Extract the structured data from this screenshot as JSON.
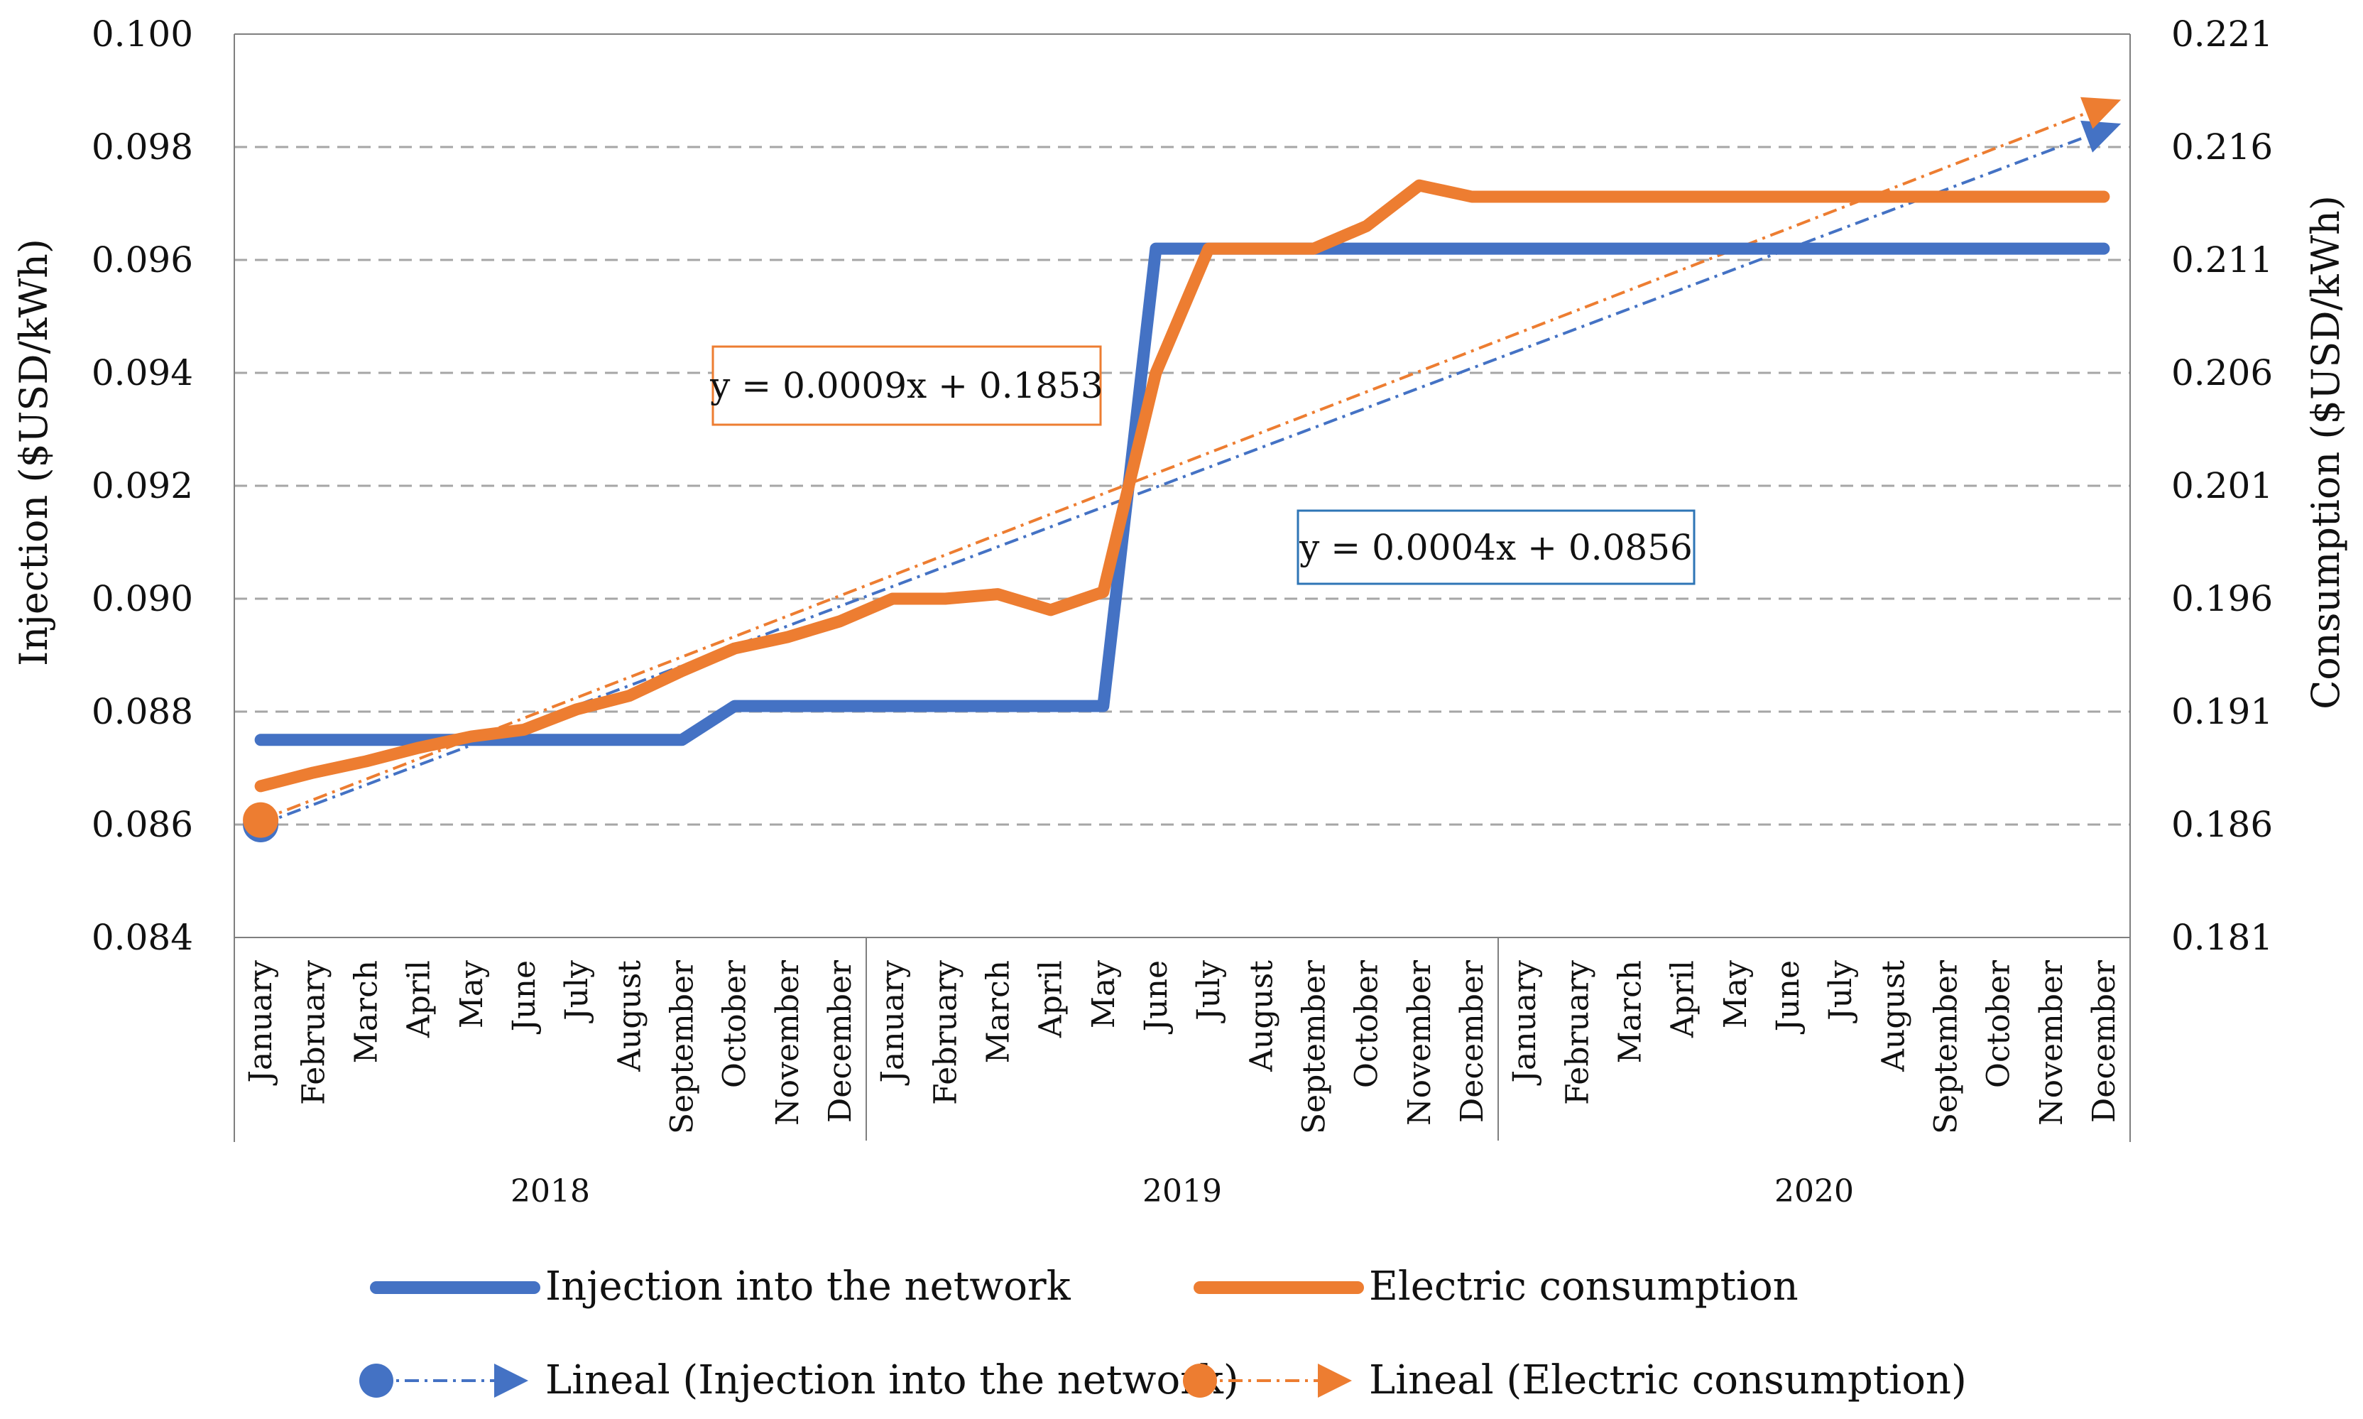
{
  "chart_data": {
    "type": "line",
    "title": "",
    "left_axis": {
      "label": "Injection ($USD/kWh)",
      "ylim": [
        0.084,
        0.1
      ],
      "ticks": [
        "0.084",
        "0.086",
        "0.088",
        "0.090",
        "0.092",
        "0.094",
        "0.096",
        "0.098",
        "0.100"
      ],
      "tick_values": [
        0.084,
        0.086,
        0.088,
        0.09,
        0.092,
        0.094,
        0.096,
        0.098,
        0.1
      ]
    },
    "right_axis": {
      "label": "Consumption ($USD/kWh)",
      "ylim": [
        0.181,
        0.221
      ],
      "ticks": [
        "0.181",
        "0.186",
        "0.191",
        "0.196",
        "0.201",
        "0.206",
        "0.211",
        "0.216",
        "0.221"
      ],
      "tick_values": [
        0.181,
        0.186,
        0.191,
        0.196,
        0.201,
        0.206,
        0.211,
        0.216,
        0.221
      ]
    },
    "gridlines": true,
    "x_months": [
      "January",
      "February",
      "March",
      "April",
      "May",
      "June",
      "July",
      "August",
      "September",
      "October",
      "November",
      "December",
      "January",
      "February",
      "March",
      "April",
      "May",
      "June",
      "July",
      "August",
      "September",
      "October",
      "November",
      "December",
      "January",
      "February",
      "March",
      "April",
      "May",
      "June",
      "July",
      "August",
      "September",
      "October",
      "November",
      "December"
    ],
    "x_years": [
      {
        "label": "2018",
        "start": 0,
        "count": 12
      },
      {
        "label": "2019",
        "start": 12,
        "count": 12
      },
      {
        "label": "2020",
        "start": 24,
        "count": 12
      }
    ],
    "series": [
      {
        "name": "Injection into the network",
        "axis": "left",
        "color": "#4472C4",
        "values": [
          0.0875,
          0.0875,
          0.0875,
          0.0875,
          0.0875,
          0.0875,
          0.0875,
          0.0875,
          0.0875,
          0.0881,
          0.0881,
          0.0881,
          0.0881,
          0.0881,
          0.0881,
          0.0881,
          0.0881,
          0.0962,
          0.0962,
          0.0962,
          0.0962,
          0.0962,
          0.0962,
          0.0962,
          0.0962,
          0.0962,
          0.0962,
          0.0962,
          0.0962,
          0.0962,
          0.0962,
          0.0962,
          0.0962,
          0.0962,
          0.0962,
          0.0962
        ]
      },
      {
        "name": "Electric consumption",
        "axis": "right",
        "color": "#ED7D31",
        "values": [
          0.1877,
          0.1883,
          0.1888,
          0.1894,
          0.1899,
          0.1902,
          0.1911,
          0.1917,
          0.1928,
          0.1938,
          0.1943,
          0.195,
          0.196,
          0.196,
          0.1962,
          0.1955,
          0.1963,
          0.206,
          0.2115,
          0.2115,
          0.2115,
          0.2125,
          0.2143,
          0.2138,
          0.2138,
          0.2138,
          0.2138,
          0.2138,
          0.2138,
          0.2138,
          0.2138,
          0.2138,
          0.2138,
          0.2138,
          0.2138,
          0.2138
        ]
      }
    ],
    "trendlines": [
      {
        "name": "Lineal (Injection into the network)",
        "of_series": "Injection into the network",
        "axis": "left",
        "color": "#4472C4",
        "equation": "y = 0.0004x + 0.0856",
        "start": 0.086,
        "end": 0.0983
      },
      {
        "name": "Lineal (Electric consumption)",
        "of_series": "Electric consumption",
        "axis": "right",
        "color": "#ED7D31",
        "equation": "y = 0.0009x + 0.1853",
        "start": 0.1862,
        "end": 0.2178
      }
    ]
  }
}
